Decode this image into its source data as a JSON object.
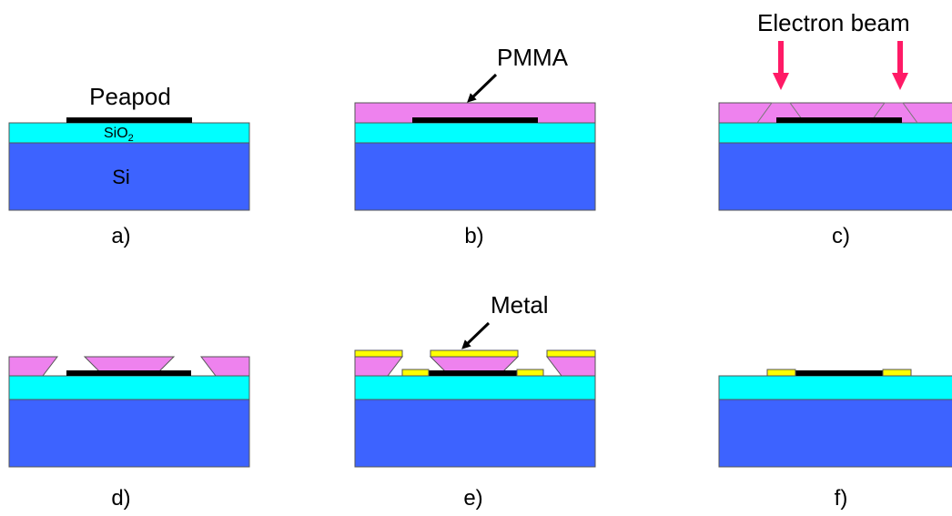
{
  "colors": {
    "si": "#3d63ff",
    "sio2": "#00ffff",
    "pmma": "#ee82ee",
    "metal": "#ffff00",
    "peapod": "#000000",
    "beam_arrow": "#ff1a66"
  },
  "labels": {
    "peapod": "Peapod",
    "sio2_main": "SiO",
    "sio2_sub": "2",
    "si": "Si",
    "pmma": "PMMA",
    "electron_beam": "Electron beam",
    "metal": "Metal"
  },
  "panels": {
    "a": "a)",
    "b": "b)",
    "c": "c)",
    "d": "d)",
    "e": "e)",
    "f": "f)"
  }
}
